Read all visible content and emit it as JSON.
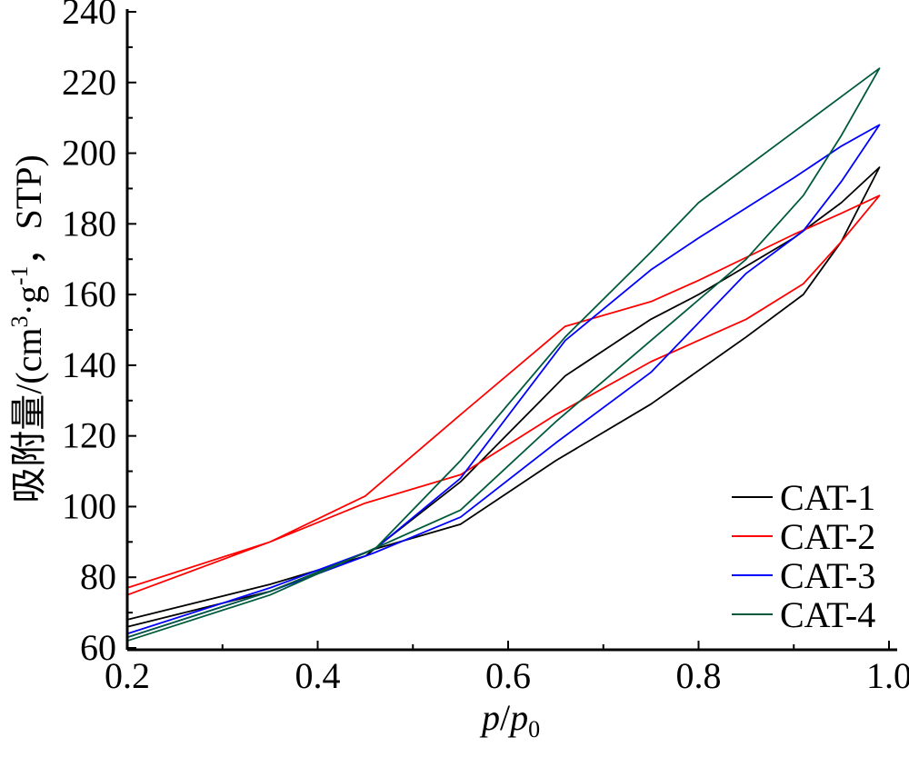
{
  "chart_data": {
    "type": "line",
    "xlabel": {
      "main": "p",
      "slash": "/",
      "sub_main": "p",
      "sub": "0"
    },
    "ylabel": {
      "prefix": "吸附量/(cm",
      "sup1": "3",
      "mid": "·g",
      "sup2": "-1",
      "suffix": "，STP)"
    },
    "xlim": [
      0.2,
      1.0
    ],
    "ylim": [
      60,
      240
    ],
    "xticks": [
      0.2,
      0.4,
      0.6,
      0.8,
      1.0
    ],
    "xtick_labels": [
      "0.2",
      "0.4",
      "0.6",
      "0.8",
      "1.0"
    ],
    "yticks": [
      60,
      80,
      100,
      120,
      140,
      160,
      180,
      200,
      220,
      240
    ],
    "ytick_labels": [
      "60",
      "80",
      "100",
      "120",
      "140",
      "160",
      "180",
      "200",
      "220",
      "240"
    ],
    "grid": false,
    "legend_position": "bottom-right",
    "series": [
      {
        "name": "CAT-1",
        "color": "#000000",
        "x": [
          0.2,
          0.35,
          0.46,
          0.55,
          0.65,
          0.75,
          0.85,
          0.91,
          0.95,
          0.99,
          0.99,
          0.95,
          0.9,
          0.8,
          0.75,
          0.66,
          0.55,
          0.45,
          0.35,
          0.2
        ],
        "y": [
          66,
          76,
          88,
          95,
          113,
          129,
          148,
          160,
          175,
          196,
          196,
          186,
          176,
          160,
          153,
          137,
          107,
          86,
          78,
          68
        ]
      },
      {
        "name": "CAT-2",
        "color": "#ff0000",
        "x": [
          0.2,
          0.35,
          0.45,
          0.55,
          0.65,
          0.75,
          0.85,
          0.91,
          0.95,
          0.99,
          0.99,
          0.95,
          0.9,
          0.8,
          0.75,
          0.66,
          0.55,
          0.45,
          0.35,
          0.2
        ],
        "y": [
          75,
          90,
          101,
          109,
          126,
          141,
          153,
          163,
          175,
          188,
          188,
          183,
          177,
          164,
          158,
          151,
          126,
          103,
          90,
          77
        ]
      },
      {
        "name": "CAT-3",
        "color": "#0000ff",
        "x": [
          0.2,
          0.35,
          0.46,
          0.55,
          0.65,
          0.75,
          0.85,
          0.91,
          0.95,
          0.99,
          0.99,
          0.95,
          0.9,
          0.8,
          0.75,
          0.66,
          0.55,
          0.46,
          0.35,
          0.2
        ],
        "y": [
          63,
          76,
          87,
          97,
          118,
          138,
          166,
          178,
          192,
          208,
          208,
          202,
          193,
          176,
          167,
          147,
          108,
          88,
          77,
          64
        ]
      },
      {
        "name": "CAT-4",
        "color": "#005a3c",
        "x": [
          0.2,
          0.35,
          0.45,
          0.55,
          0.65,
          0.75,
          0.85,
          0.91,
          0.95,
          0.99,
          0.99,
          0.95,
          0.9,
          0.8,
          0.75,
          0.66,
          0.55,
          0.46,
          0.35,
          0.2
        ],
        "y": [
          62,
          75,
          87,
          99,
          124,
          147,
          170,
          188,
          205,
          224,
          224,
          216,
          206,
          186,
          172,
          148,
          113,
          88,
          76,
          63
        ]
      }
    ]
  }
}
